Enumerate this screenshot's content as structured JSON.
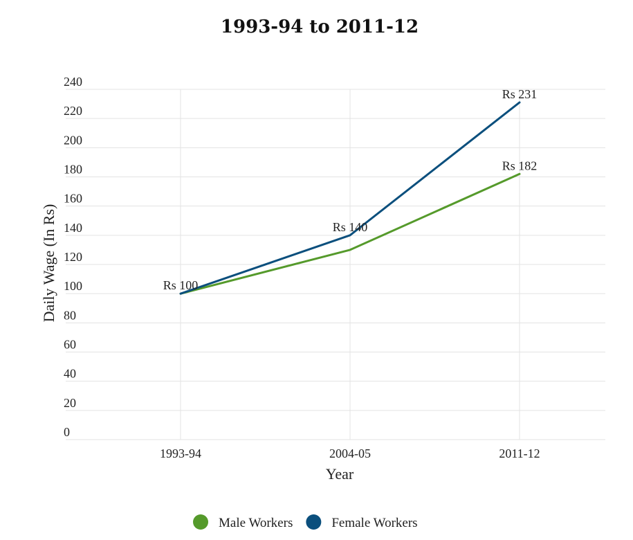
{
  "chart_data": {
    "type": "line",
    "title": "1993-94 to 2011-12",
    "xlabel": "Year",
    "ylabel": "Daily Wage (In Rs)",
    "categories": [
      "1993-94",
      "2004-05",
      "2011-12"
    ],
    "ylim": [
      0,
      240
    ],
    "yticks": [
      0,
      20,
      40,
      60,
      80,
      100,
      120,
      140,
      160,
      180,
      200,
      220,
      240
    ],
    "grid": true,
    "legend_position": "bottom",
    "series": [
      {
        "name": "Male Workers",
        "color": "#559a2b",
        "values": [
          100,
          130,
          182
        ]
      },
      {
        "name": "Female Workers",
        "color": "#0b4f7d",
        "values": [
          100,
          140,
          231
        ]
      }
    ],
    "annotations": [
      {
        "category": "1993-94",
        "value": 100,
        "text": "Rs 100"
      },
      {
        "category": "2004-05",
        "value": 140,
        "text": "Rs 140"
      },
      {
        "category": "2011-12",
        "value": 231,
        "text": "Rs 231"
      },
      {
        "category": "2011-12",
        "value": 182,
        "text": "Rs 182"
      }
    ]
  }
}
